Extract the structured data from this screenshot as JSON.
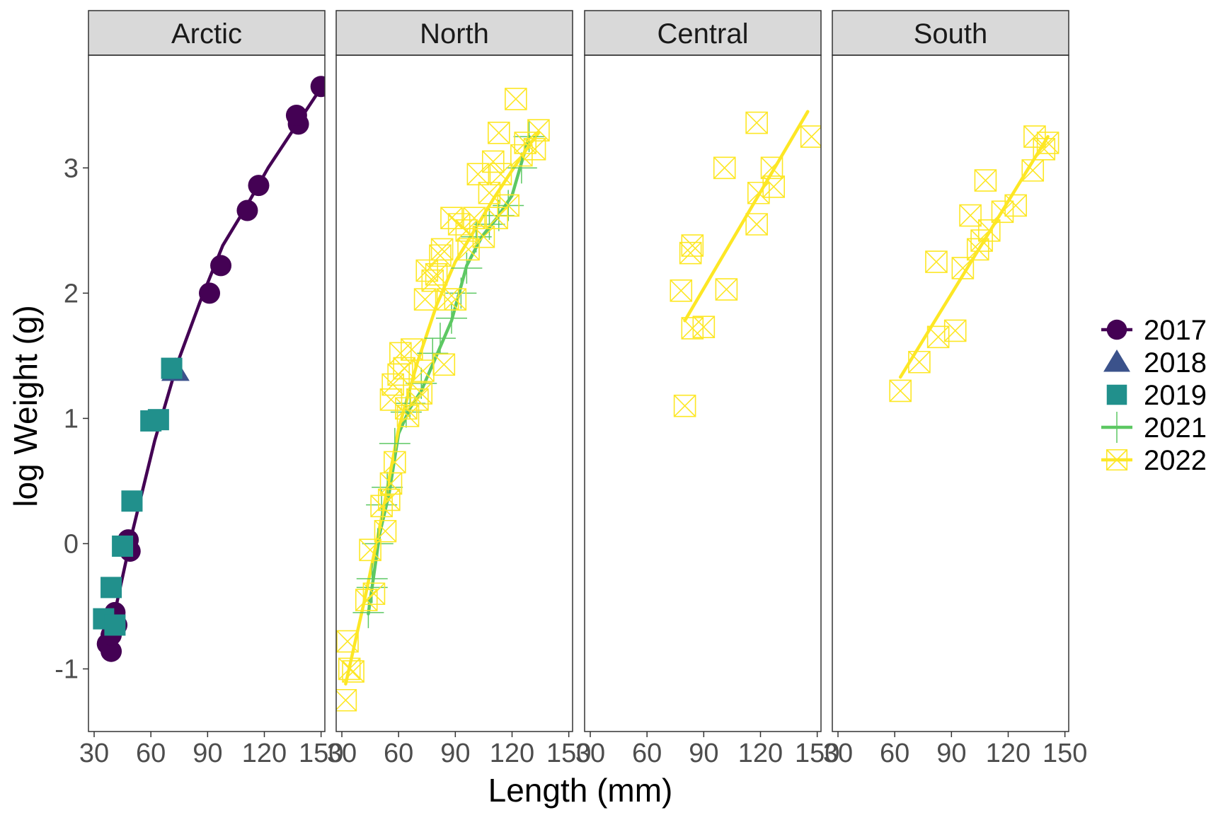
{
  "chart_data": {
    "type": "scatter",
    "xlabel": "Length (mm)",
    "ylabel": "log Weight (g)",
    "xlim": [
      27,
      152
    ],
    "ylim": [
      -1.5,
      3.9
    ],
    "x_ticks": [
      30,
      60,
      90,
      120,
      150
    ],
    "y_ticks": [
      -1,
      0,
      1,
      2,
      3
    ],
    "legend_placement": "right",
    "legend": [
      {
        "year": "2017",
        "shape": "circle",
        "color": "#440154"
      },
      {
        "year": "2018",
        "shape": "triangle",
        "color": "#3B528B"
      },
      {
        "year": "2019",
        "shape": "square",
        "color": "#21908C"
      },
      {
        "year": "2021",
        "shape": "plus",
        "color": "#5DC863"
      },
      {
        "year": "2022",
        "shape": "square-x",
        "color": "#FDE725"
      }
    ],
    "panels": [
      {
        "name": "Arctic",
        "series": [
          {
            "year": "2017",
            "points": [
              [
                37,
                -0.8
              ],
              [
                39,
                -0.86
              ],
              [
                39,
                -0.73
              ],
              [
                41,
                -0.55
              ],
              [
                42,
                -0.65
              ],
              [
                49,
                -0.06
              ],
              [
                48,
                0.03
              ],
              [
                91,
                2.0
              ],
              [
                97,
                2.22
              ],
              [
                111,
                2.66
              ],
              [
                117,
                2.86
              ],
              [
                138,
                3.35
              ],
              [
                137,
                3.42
              ],
              [
                150,
                3.65
              ]
            ],
            "fit": [
              [
                38,
                -0.75
              ],
              [
                50,
                0.08
              ],
              [
                62,
                0.82
              ],
              [
                74,
                1.44
              ],
              [
                86,
                1.93
              ],
              [
                98,
                2.38
              ],
              [
                110,
                2.68
              ],
              [
                122,
                3.0
              ],
              [
                136,
                3.32
              ],
              [
                150,
                3.64
              ]
            ]
          },
          {
            "year": "2018",
            "points": [
              [
                73,
                1.38
              ]
            ]
          },
          {
            "year": "2019",
            "points": [
              [
                35,
                -0.6
              ],
              [
                41,
                -0.65
              ],
              [
                39,
                -0.35
              ],
              [
                45,
                -0.02
              ],
              [
                50,
                0.34
              ],
              [
                60,
                0.98
              ],
              [
                64,
                0.99
              ],
              [
                71,
                1.4
              ]
            ]
          }
        ]
      },
      {
        "name": "North",
        "series": [
          {
            "year": "2021",
            "points": [
              [
                44,
                -0.55
              ],
              [
                46,
                -0.35
              ],
              [
                46,
                -0.28
              ],
              [
                49,
                0.0
              ],
              [
                51,
                0.31
              ],
              [
                54,
                0.45
              ],
              [
                58,
                0.8
              ],
              [
                64,
                1.05
              ],
              [
                66,
                1.12
              ],
              [
                72,
                1.28
              ],
              [
                78,
                1.52
              ],
              [
                82,
                1.64
              ],
              [
                88,
                1.8
              ],
              [
                93,
                2.0
              ],
              [
                96,
                2.2
              ],
              [
                101,
                2.45
              ],
              [
                108,
                2.55
              ],
              [
                113,
                2.62
              ],
              [
                118,
                2.7
              ],
              [
                125,
                3.0
              ],
              [
                129,
                3.25
              ]
            ],
            "fit": [
              [
                44,
                -0.56
              ],
              [
                50,
                0.08
              ],
              [
                55,
                0.4
              ],
              [
                60,
                0.88
              ],
              [
                66,
                1.08
              ],
              [
                72,
                1.22
              ],
              [
                80,
                1.5
              ],
              [
                88,
                1.78
              ],
              [
                96,
                2.22
              ],
              [
                104,
                2.45
              ],
              [
                112,
                2.6
              ],
              [
                120,
                2.78
              ],
              [
                129,
                3.25
              ]
            ]
          },
          {
            "year": "2022",
            "points": [
              [
                32,
                -1.25
              ],
              [
                33,
                -0.78
              ],
              [
                34,
                -1.0
              ],
              [
                36,
                -1.02
              ],
              [
                43,
                -0.45
              ],
              [
                45,
                -0.05
              ],
              [
                47,
                -0.4
              ],
              [
                51,
                0.3
              ],
              [
                53,
                0.1
              ],
              [
                55,
                0.35
              ],
              [
                56,
                0.48
              ],
              [
                58,
                0.65
              ],
              [
                56,
                1.15
              ],
              [
                57,
                1.27
              ],
              [
                60,
                1.35
              ],
              [
                61,
                1.52
              ],
              [
                63,
                1.4
              ],
              [
                64,
                1.08
              ],
              [
                65,
                1.02
              ],
              [
                67,
                1.55
              ],
              [
                70,
                1.15
              ],
              [
                72,
                1.2
              ],
              [
                73,
                1.38
              ],
              [
                74,
                1.95
              ],
              [
                75,
                2.18
              ],
              [
                78,
                2.1
              ],
              [
                80,
                2.15
              ],
              [
                82,
                2.3
              ],
              [
                83,
                2.35
              ],
              [
                84,
                1.43
              ],
              [
                86,
                1.95
              ],
              [
                88,
                2.6
              ],
              [
                90,
                1.95
              ],
              [
                92,
                2.55
              ],
              [
                96,
                2.5
              ],
              [
                97,
                2.35
              ],
              [
                100,
                2.6
              ],
              [
                102,
                2.95
              ],
              [
                105,
                2.45
              ],
              [
                108,
                2.8
              ],
              [
                110,
                3.05
              ],
              [
                112,
                2.6
              ],
              [
                113,
                3.28
              ],
              [
                114,
                2.95
              ],
              [
                118,
                2.7
              ],
              [
                122,
                3.55
              ],
              [
                125,
                3.1
              ],
              [
                127,
                3.2
              ],
              [
                132,
                3.15
              ],
              [
                134,
                3.3
              ]
            ],
            "fit": [
              [
                32,
                -1.12
              ],
              [
                42,
                -0.45
              ],
              [
                52,
                0.28
              ],
              [
                60,
                0.92
              ],
              [
                70,
                1.45
              ],
              [
                80,
                1.9
              ],
              [
                90,
                2.25
              ],
              [
                100,
                2.5
              ],
              [
                110,
                2.75
              ],
              [
                120,
                2.98
              ],
              [
                130,
                3.2
              ],
              [
                134,
                3.28
              ]
            ]
          }
        ]
      },
      {
        "name": "Central",
        "series": [
          {
            "year": "2022",
            "points": [
              [
                78,
                2.02
              ],
              [
                80,
                1.1
              ],
              [
                83,
                2.32
              ],
              [
                84,
                2.38
              ],
              [
                84,
                1.72
              ],
              [
                90,
                1.73
              ],
              [
                101,
                3.0
              ],
              [
                102,
                2.03
              ],
              [
                118,
                2.55
              ],
              [
                118,
                3.36
              ],
              [
                119,
                2.8
              ],
              [
                126,
                3.0
              ],
              [
                127,
                2.85
              ],
              [
                147,
                3.25
              ]
            ],
            "fit": [
              [
                80,
                1.78
              ],
              [
                145,
                3.45
              ]
            ]
          }
        ]
      },
      {
        "name": "South",
        "series": [
          {
            "year": "2022",
            "points": [
              [
                63,
                1.22
              ],
              [
                73,
                1.45
              ],
              [
                82,
                2.25
              ],
              [
                83,
                1.65
              ],
              [
                92,
                1.7
              ],
              [
                96,
                2.2
              ],
              [
                100,
                2.62
              ],
              [
                104,
                2.35
              ],
              [
                106,
                2.42
              ],
              [
                108,
                2.9
              ],
              [
                110,
                2.5
              ],
              [
                117,
                2.65
              ],
              [
                124,
                2.7
              ],
              [
                133,
                2.98
              ],
              [
                134,
                3.25
              ],
              [
                139,
                3.15
              ],
              [
                141,
                3.2
              ]
            ],
            "fit": [
              [
                63,
                1.33
              ],
              [
                141,
                3.25
              ]
            ]
          }
        ]
      }
    ]
  }
}
